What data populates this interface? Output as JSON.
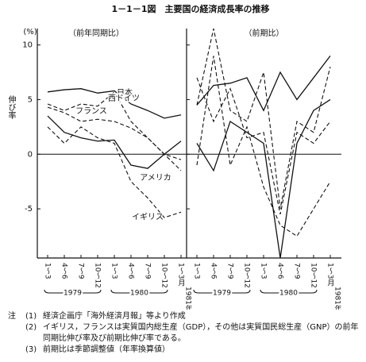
{
  "title": "1－1－1図　主要国の経済成長率の推移",
  "y_unit": "(%)",
  "y_label": "伸び率",
  "chart_data": [
    {
      "type": "line",
      "subtitle": "（前年同期比）",
      "categories": [
        "1～3",
        "4～6",
        "7～9",
        "10～12",
        "1～3",
        "4～6",
        "7～9",
        "10～12",
        "1～3月"
      ],
      "year_labels": [
        "1979",
        "1980",
        "1981年"
      ],
      "ylim": [
        -9.5,
        11.5
      ],
      "yticks": [
        10,
        5,
        0,
        -5
      ],
      "series": [
        {
          "name": "日本",
          "color": "#111111",
          "style": "solid",
          "values": [
            5.7,
            5.9,
            6.0,
            5.6,
            5.8,
            4.6,
            4.0,
            3.3,
            3.6
          ]
        },
        {
          "name": "西ドイツ",
          "color": "#111111",
          "style": "dashed",
          "values": [
            4.6,
            4.0,
            4.6,
            4.4,
            5.7,
            3.0,
            1.5,
            0.0,
            -1.5
          ]
        },
        {
          "name": "フランス",
          "color": "#111111",
          "style": "dashed",
          "values": [
            4.3,
            3.8,
            3.0,
            3.2,
            3.0,
            2.4,
            1.5,
            0.0,
            -0.5
          ]
        },
        {
          "name": "アメリカ",
          "color": "#111111",
          "style": "solid",
          "values": [
            3.5,
            2.0,
            1.5,
            1.2,
            1.3,
            -1.0,
            -1.3,
            0.0,
            1.2
          ]
        },
        {
          "name": "イギリス",
          "color": "#111111",
          "style": "dashed",
          "values": [
            2.5,
            1.0,
            2.5,
            1.5,
            1.0,
            -2.5,
            -4.0,
            -5.8,
            -5.3
          ]
        }
      ]
    },
    {
      "type": "line",
      "subtitle": "（前期比）",
      "categories": [
        "1～3",
        "4～6",
        "7～9",
        "10～12",
        "1～3",
        "4～6",
        "7～9",
        "10～12",
        "1～3月"
      ],
      "year_labels": [
        "1979",
        "1980",
        "1981年"
      ],
      "ylim": [
        -9.5,
        11.5
      ],
      "yticks": [
        10,
        5,
        0,
        -5
      ],
      "series": [
        {
          "color": "#111111",
          "style": "solid",
          "values": [
            4.5,
            6.3,
            6.5,
            7.0,
            4.0,
            7.5,
            5.0,
            7.0,
            9.0
          ]
        },
        {
          "color": "#111111",
          "style": "dashed",
          "values": [
            4.5,
            11.5,
            4.0,
            3.0,
            7.5,
            -5.0,
            3.0,
            2.0,
            8.0
          ]
        },
        {
          "color": "#111111",
          "style": "dashed",
          "values": [
            7.0,
            3.0,
            6.0,
            1.5,
            2.0,
            -5.5,
            2.0,
            1.0,
            3.0
          ]
        },
        {
          "color": "#111111",
          "style": "solid",
          "values": [
            1.0,
            -1.5,
            3.0,
            2.0,
            1.0,
            -9.5,
            1.0,
            4.0,
            5.0
          ]
        },
        {
          "color": "#111111",
          "style": "dashed",
          "values": [
            -1.0,
            9.0,
            -1.0,
            2.5,
            -3.0,
            -6.5,
            -7.5,
            -5.0,
            -2.5
          ]
        }
      ]
    }
  ],
  "notes": {
    "head": "注",
    "items": [
      {
        "num": "(1)",
        "text": "経済企画庁「海外経済月報」等より作成"
      },
      {
        "num": "(2)",
        "text": "イギリス，フランスは実質国内総生産（GDP），その他は実質国民総生産（GNP）の前年同期比伸び率及び前期比伸び率である。"
      },
      {
        "num": "(3)",
        "text": "前期比は季節調整値（年率換算値）"
      }
    ]
  }
}
